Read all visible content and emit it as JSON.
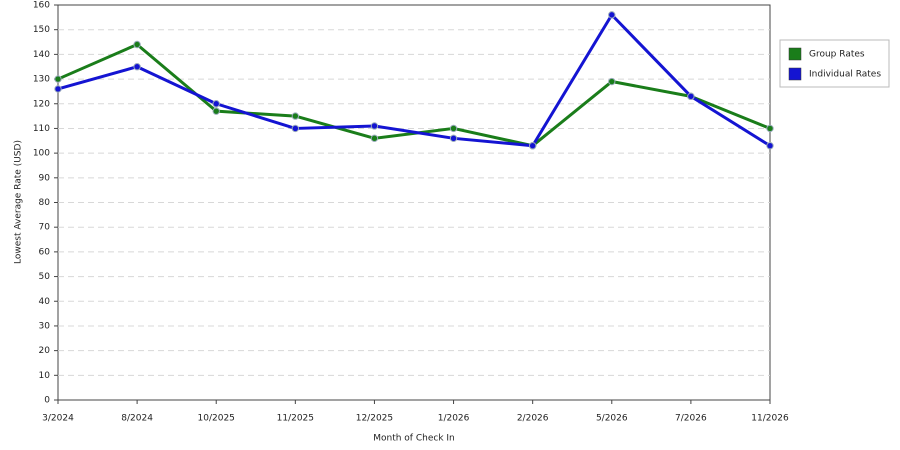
{
  "chart_data": {
    "type": "line",
    "x_label": "Month of Check In",
    "y_label": "Lowest Average Rate (USD)",
    "categories": [
      "3/2024",
      "8/2024",
      "10/2025",
      "11/2025",
      "12/2025",
      "1/2026",
      "2/2026",
      "5/2026",
      "7/2026",
      "11/2026"
    ],
    "series": [
      {
        "name": "Group Rates",
        "color": "#1a7d1a",
        "values": [
          130,
          144,
          117,
          115,
          106,
          110,
          103,
          129,
          123,
          110
        ]
      },
      {
        "name": "Individual Rates",
        "color": "#1414d2",
        "values": [
          126,
          135,
          120,
          110,
          111,
          106,
          103,
          156,
          123,
          103
        ]
      }
    ],
    "ylim": [
      0,
      160
    ],
    "yticks": [
      0,
      10,
      20,
      30,
      40,
      50,
      60,
      70,
      80,
      90,
      100,
      110,
      120,
      130,
      140,
      150,
      160
    ],
    "grid": true,
    "legend": "right"
  }
}
